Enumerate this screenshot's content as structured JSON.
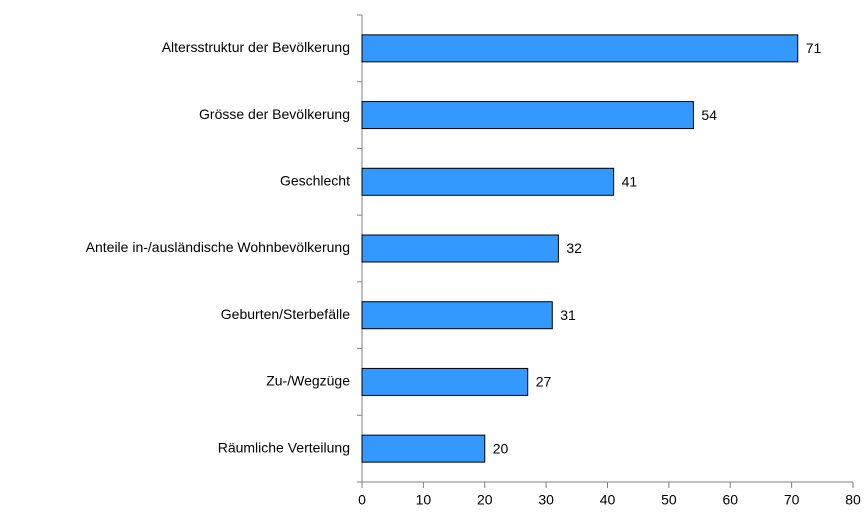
{
  "chart_data": {
    "type": "bar",
    "orientation": "horizontal",
    "categories": [
      "Altersstruktur der Bevölkerung",
      "Grösse der Bevölkerung",
      "Geschlecht",
      "Anteile in-/ausländische Wohnbevölkerung",
      "Geburten/Sterbefälle",
      "Zu-/Wegzüge",
      "Räumliche Verteilung"
    ],
    "values": [
      71,
      54,
      41,
      32,
      31,
      27,
      20
    ],
    "color": "#3399ff",
    "xlim": [
      0,
      80
    ],
    "xticks": [
      0,
      10,
      20,
      30,
      40,
      50,
      60,
      70,
      80
    ],
    "grid": false
  }
}
